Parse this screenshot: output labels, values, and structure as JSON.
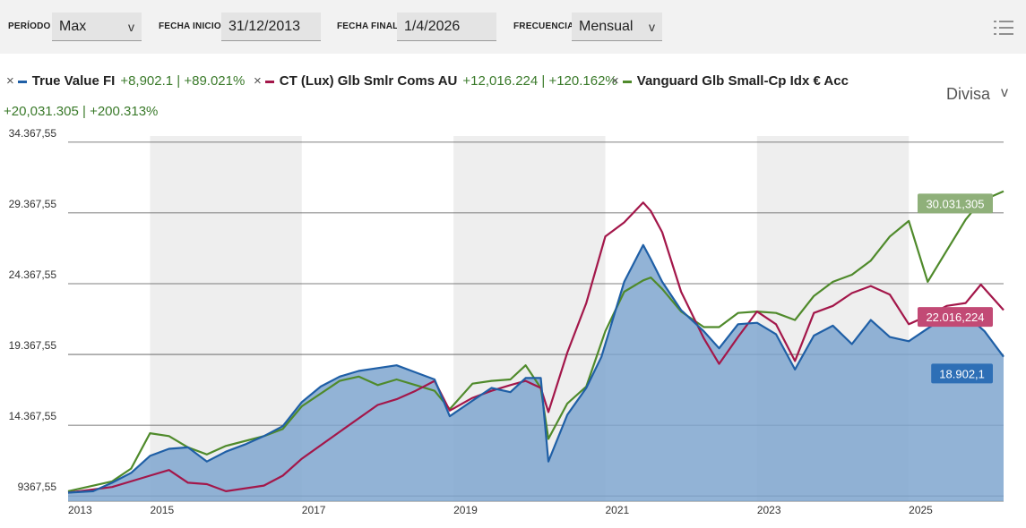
{
  "controls": {
    "periodo_label": "PERÍODO",
    "periodo_value": "Max",
    "inicio_label": "FECHA INICIO",
    "inicio_value": "31/12/2013",
    "final_label": "FECHA FINAL",
    "final_value": "1/4/2026",
    "frecuencia_label": "FRECUENCIA",
    "frecuencia_value": "Mensual",
    "chevron": "v",
    "menu_icon": "list-icon"
  },
  "legend": {
    "remove_glyph": "×",
    "items": [
      {
        "name": "True Value FI",
        "change": "+8,902.1 | +89.021%",
        "color": "#1f5fa6"
      },
      {
        "name": "CT (Lux) Glb Smlr Coms AU",
        "change": "+12,016.224 | +120.162%",
        "color": "#a3174a"
      },
      {
        "name": "Vanguard Glb Small-Cp Idx € Acc",
        "change": "+20,031.305 | +200.313%",
        "color": "#4f8a2b"
      }
    ]
  },
  "divisa": {
    "label": "Divisa",
    "chevron": "v"
  },
  "chart_data": {
    "type": "line",
    "y_ticks": [
      "34.367,55",
      "29.367,55",
      "24.367,55",
      "19.367,55",
      "14.367,55",
      "9367,55"
    ],
    "y_tick_values": [
      34367.55,
      29367.55,
      24367.55,
      19367.55,
      14367.55,
      9367.55
    ],
    "ylim": [
      9000,
      34800
    ],
    "x_ticks": [
      "2013",
      "2015",
      "2017",
      "2019",
      "2021",
      "2023",
      "2025"
    ],
    "x_tick_values": [
      2013.92,
      2015,
      2017,
      2019,
      2021,
      2023,
      2025
    ],
    "xlim": [
      2013.92,
      2026.25
    ],
    "shaded_years": [
      [
        2015,
        2017
      ],
      [
        2019,
        2021
      ],
      [
        2023,
        2025
      ]
    ],
    "end_labels": [
      "30.031,305",
      "22.016,224",
      "18.902,1"
    ],
    "series": [
      {
        "name": "True Value FI",
        "color": "#1f5fa6",
        "area": true,
        "x": [
          2013.92,
          2014.25,
          2014.5,
          2014.75,
          2015.0,
          2015.25,
          2015.5,
          2015.75,
          2016.0,
          2016.25,
          2016.5,
          2016.75,
          2017.0,
          2017.25,
          2017.5,
          2017.75,
          2018.0,
          2018.25,
          2018.5,
          2018.75,
          2018.95,
          2019.25,
          2019.5,
          2019.75,
          2019.95,
          2020.15,
          2020.25,
          2020.5,
          2020.75,
          2020.95,
          2021.25,
          2021.5,
          2021.6,
          2021.75,
          2022.0,
          2022.3,
          2022.5,
          2022.75,
          2023.0,
          2023.25,
          2023.5,
          2023.75,
          2024.0,
          2024.25,
          2024.5,
          2024.75,
          2025.0,
          2025.25,
          2025.5,
          2025.75,
          2026.0,
          2026.25
        ],
        "y": [
          9600,
          9700,
          10300,
          11000,
          12200,
          12700,
          12800,
          11800,
          12500,
          13000,
          13600,
          14300,
          16000,
          17100,
          17800,
          18200,
          18400,
          18600,
          18100,
          17600,
          15000,
          16100,
          17000,
          16700,
          17700,
          17700,
          11800,
          15100,
          17000,
          19200,
          24500,
          27100,
          26100,
          24500,
          22500,
          21000,
          19800,
          21500,
          21600,
          20800,
          18300,
          20700,
          21400,
          20100,
          21800,
          20600,
          20300,
          21200,
          22100,
          22200,
          21000,
          19200
        ]
      },
      {
        "name": "CT (Lux) Glb Smlr Coms AU",
        "color": "#a3174a",
        "x": [
          2013.92,
          2014.5,
          2015.0,
          2015.25,
          2015.5,
          2015.75,
          2016.0,
          2016.5,
          2016.75,
          2017.0,
          2017.5,
          2018.0,
          2018.25,
          2018.5,
          2018.75,
          2018.95,
          2019.25,
          2019.5,
          2019.75,
          2019.95,
          2020.15,
          2020.25,
          2020.5,
          2020.75,
          2021.0,
          2021.25,
          2021.5,
          2021.6,
          2021.75,
          2022.0,
          2022.3,
          2022.5,
          2022.75,
          2023.0,
          2023.25,
          2023.5,
          2023.75,
          2024.0,
          2024.25,
          2024.5,
          2024.75,
          2025.0,
          2025.25,
          2025.5,
          2025.75,
          2025.95,
          2026.25
        ],
        "y": [
          9600,
          10000,
          10800,
          11200,
          10300,
          10200,
          9700,
          10100,
          10800,
          12000,
          13900,
          15800,
          16200,
          16800,
          17500,
          15400,
          16300,
          16800,
          17200,
          17500,
          17000,
          15300,
          19500,
          23000,
          27700,
          28700,
          30100,
          29500,
          28000,
          23800,
          20500,
          18700,
          20600,
          22400,
          21500,
          18900,
          22300,
          22800,
          23700,
          24200,
          23600,
          21500,
          22100,
          22800,
          23000,
          24300,
          22500
        ]
      },
      {
        "name": "Vanguard Glb Small-Cp Idx € Acc",
        "color": "#4f8a2b",
        "x": [
          2013.92,
          2014.5,
          2014.75,
          2015.0,
          2015.25,
          2015.5,
          2015.75,
          2016.0,
          2016.5,
          2016.75,
          2017.0,
          2017.5,
          2017.75,
          2018.0,
          2018.25,
          2018.5,
          2018.75,
          2018.95,
          2019.25,
          2019.5,
          2019.75,
          2019.95,
          2020.15,
          2020.25,
          2020.5,
          2020.75,
          2021.0,
          2021.25,
          2021.5,
          2021.6,
          2021.75,
          2022.0,
          2022.3,
          2022.5,
          2022.75,
          2023.0,
          2023.25,
          2023.5,
          2023.75,
          2024.0,
          2024.25,
          2024.5,
          2024.75,
          2025.0,
          2025.25,
          2025.5,
          2025.75,
          2025.95,
          2026.25
        ],
        "y": [
          9700,
          10400,
          11300,
          13800,
          13600,
          12800,
          12300,
          12900,
          13600,
          14100,
          15700,
          17500,
          17800,
          17200,
          17600,
          17200,
          16800,
          15500,
          17300,
          17500,
          17600,
          18600,
          17000,
          13400,
          15900,
          17100,
          21000,
          23800,
          24600,
          24800,
          24000,
          22400,
          21300,
          21300,
          22300,
          22400,
          22300,
          21800,
          23500,
          24500,
          25000,
          26000,
          27700,
          28800,
          24500,
          26700,
          28900,
          30200,
          30900
        ]
      }
    ]
  }
}
